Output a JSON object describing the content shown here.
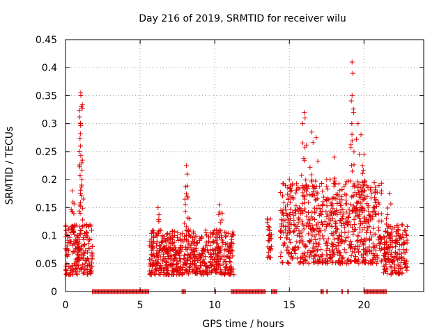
{
  "chart_data": {
    "type": "scatter",
    "title": "Day 216 of 2019, SRMTID for receiver wilu",
    "xlabel": "GPS time / hours",
    "ylabel": "SRMTID / TECUs",
    "xlim": [
      0,
      24
    ],
    "ylim": [
      0,
      0.45
    ],
    "xticks": [
      0,
      5,
      10,
      15,
      20
    ],
    "xtick_labels": [
      "0",
      "5",
      "10",
      "15",
      "20"
    ],
    "yticks": [
      0,
      0.05,
      0.1,
      0.15,
      0.2,
      0.25,
      0.3,
      0.35,
      0.4,
      0.45
    ],
    "ytick_labels": [
      "0",
      "0.05",
      "0.1",
      "0.15",
      "0.2",
      "0.25",
      "0.3",
      "0.35",
      "0.4",
      "0.45"
    ],
    "grid": true,
    "marker": "+",
    "color": "#e00000",
    "series": [
      {
        "name": "SRMTID",
        "clusters": [
          {
            "x_range": [
              0.0,
              1.8
            ],
            "y_typical": [
              0.03,
              0.12
            ],
            "peaks": [
              [
                0.45,
                0.18
              ],
              [
                0.5,
                0.16
              ],
              [
                0.8,
                0.1
              ],
              [
                1.0,
                0.3
              ],
              [
                1.02,
                0.355
              ],
              [
                1.03,
                0.35
              ],
              [
                1.05,
                0.33
              ],
              [
                1.0,
                0.26
              ],
              [
                1.1,
                0.23
              ],
              [
                1.1,
                0.2
              ],
              [
                1.4,
                0.12
              ]
            ]
          },
          {
            "x_range": [
              5.6,
              11.3
            ],
            "y_typical": [
              0.03,
              0.11
            ],
            "peaks": [
              [
                6.2,
                0.15
              ],
              [
                8.0,
                0.165
              ],
              [
                8.1,
                0.225
              ],
              [
                8.15,
                0.21
              ],
              [
                8.3,
                0.13
              ],
              [
                10.3,
                0.155
              ],
              [
                10.5,
                0.14
              ]
            ]
          },
          {
            "x_range": [
              13.5,
              13.8
            ],
            "y_typical": [
              0.06,
              0.13
            ],
            "peaks": []
          },
          {
            "x_range": [
              14.4,
              21.2
            ],
            "y_typical": [
              0.05,
              0.2
            ],
            "peaks": [
              [
                15.0,
                0.2
              ],
              [
                15.9,
                0.3
              ],
              [
                16.0,
                0.32
              ],
              [
                16.05,
                0.31
              ],
              [
                16.5,
                0.285
              ],
              [
                16.8,
                0.275
              ],
              [
                17.5,
                0.2
              ],
              [
                18.0,
                0.24
              ],
              [
                19.2,
                0.41
              ],
              [
                19.25,
                0.39
              ],
              [
                19.3,
                0.32
              ],
              [
                19.6,
                0.3
              ],
              [
                19.8,
                0.28
              ],
              [
                20.0,
                0.245
              ],
              [
                19.9,
                0.225
              ]
            ]
          },
          {
            "x_range": [
              21.3,
              22.9
            ],
            "y_typical": [
              0.03,
              0.12
            ],
            "peaks": [
              [
                21.7,
                0.175
              ],
              [
                21.5,
                0.13
              ]
            ]
          }
        ],
        "zero_segments": [
          [
            1.8,
            5.6
          ],
          [
            7.8,
            8.05
          ],
          [
            10.0,
            10.1
          ],
          [
            11.1,
            13.4
          ],
          [
            13.8,
            14.2
          ],
          [
            17.1,
            17.3
          ],
          [
            17.5,
            17.6
          ],
          [
            18.5,
            18.6
          ],
          [
            18.9,
            19.0
          ],
          [
            20.0,
            21.5
          ]
        ]
      }
    ]
  }
}
